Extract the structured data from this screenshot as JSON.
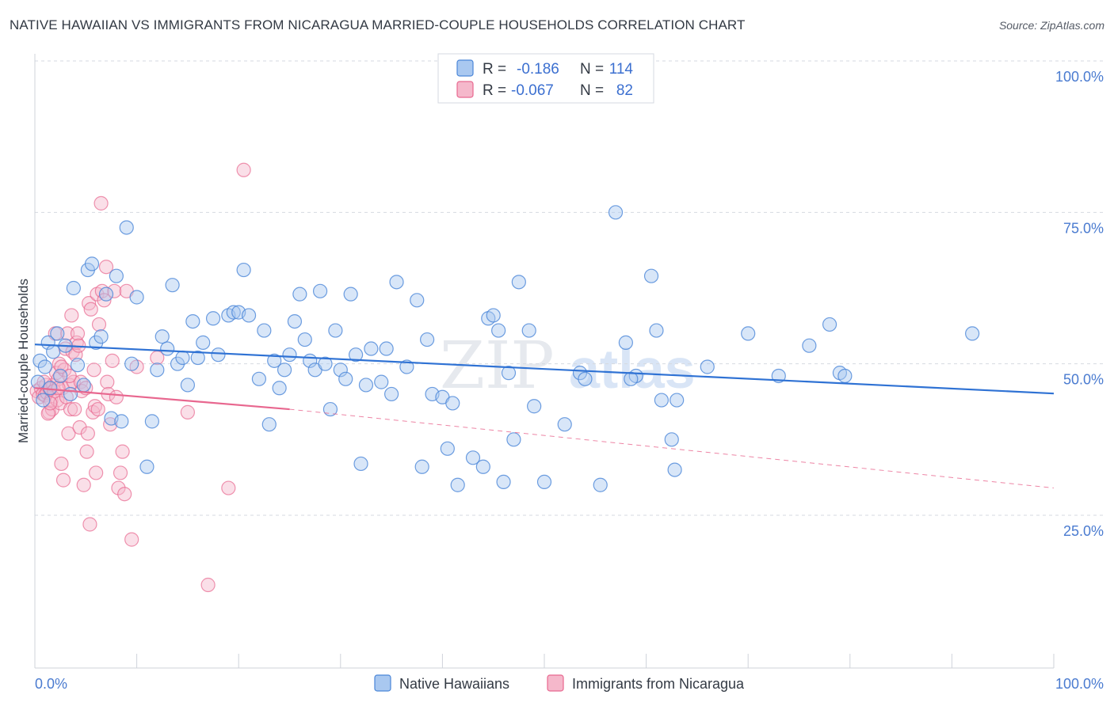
{
  "title": "NATIVE HAWAIIAN VS IMMIGRANTS FROM NICARAGUA MARRIED-COUPLE HOUSEHOLDS CORRELATION CHART",
  "source": "Source: ZipAtlas.com",
  "watermark": {
    "zip": "ZIP",
    "atlas": "atlas"
  },
  "colors": {
    "blue": "#4a86d8",
    "blue_fill": "#a9c8f0",
    "pink": "#e8678f",
    "pink_fill": "#f5b8cb",
    "grid": "#d5d9e0",
    "axis_text": "#4a7bd0"
  },
  "legend_top": {
    "rows": [
      {
        "r_label": "R =",
        "r_value": "-0.186",
        "n_label": "N =",
        "n_value": "114"
      },
      {
        "r_label": "R =",
        "r_value": "-0.067",
        "n_label": "N =",
        "n_value": "82"
      }
    ]
  },
  "legend_bottom": [
    "Native Hawaiians",
    "Immigrants from Nicaragua"
  ],
  "chart_data": {
    "type": "scatter",
    "title": "NATIVE HAWAIIAN VS IMMIGRANTS FROM NICARAGUA MARRIED-COUPLE HOUSEHOLDS CORRELATION CHART",
    "xlabel": "",
    "ylabel": "Married-couple Households",
    "xlim": [
      0,
      100
    ],
    "ylim": [
      0,
      105
    ],
    "x_tick_labels": [
      "0.0%",
      "100.0%"
    ],
    "y_ticks": [
      25,
      50,
      75,
      100
    ],
    "y_tick_labels": [
      "25.0%",
      "50.0%",
      "75.0%",
      "100.0%"
    ],
    "grid": "horizontal dashed",
    "legend_placement": "top-center",
    "series": [
      {
        "name": "Native Hawaiians",
        "r": -0.186,
        "n": 114,
        "trend": {
          "x": [
            0,
            100
          ],
          "y": [
            53.2,
            45.1
          ]
        },
        "points": [
          [
            0.3,
            47.0
          ],
          [
            0.5,
            50.5
          ],
          [
            0.8,
            44.0
          ],
          [
            1.0,
            49.5
          ],
          [
            1.3,
            53.5
          ],
          [
            1.5,
            46.0
          ],
          [
            1.8,
            52.0
          ],
          [
            2.2,
            55.0
          ],
          [
            2.5,
            48.0
          ],
          [
            3.0,
            53.0
          ],
          [
            3.5,
            45.0
          ],
          [
            3.8,
            62.5
          ],
          [
            4.2,
            49.8
          ],
          [
            4.8,
            46.5
          ],
          [
            5.2,
            65.5
          ],
          [
            5.6,
            66.5
          ],
          [
            6.0,
            53.5
          ],
          [
            6.5,
            54.5
          ],
          [
            7.0,
            61.5
          ],
          [
            7.5,
            41.0
          ],
          [
            8.0,
            64.5
          ],
          [
            8.5,
            40.5
          ],
          [
            9.0,
            72.5
          ],
          [
            9.5,
            50.0
          ],
          [
            10.0,
            61.0
          ],
          [
            11.0,
            33.0
          ],
          [
            11.5,
            40.5
          ],
          [
            12.0,
            49.0
          ],
          [
            12.5,
            54.5
          ],
          [
            13.0,
            52.5
          ],
          [
            13.5,
            63.0
          ],
          [
            14.0,
            50.0
          ],
          [
            14.5,
            51.0
          ],
          [
            15.0,
            46.5
          ],
          [
            15.5,
            57.0
          ],
          [
            16.0,
            51.0
          ],
          [
            16.5,
            53.5
          ],
          [
            17.5,
            57.5
          ],
          [
            18.0,
            51.5
          ],
          [
            19.0,
            58.0
          ],
          [
            19.5,
            58.5
          ],
          [
            20.0,
            58.5
          ],
          [
            20.5,
            65.5
          ],
          [
            21.0,
            58.0
          ],
          [
            22.0,
            47.5
          ],
          [
            22.5,
            55.5
          ],
          [
            23.0,
            40.0
          ],
          [
            23.5,
            50.5
          ],
          [
            24.0,
            46.0
          ],
          [
            24.5,
            49.0
          ],
          [
            25.0,
            51.5
          ],
          [
            25.5,
            57.0
          ],
          [
            26.0,
            61.5
          ],
          [
            26.5,
            54.0
          ],
          [
            27.0,
            50.5
          ],
          [
            27.5,
            49.0
          ],
          [
            28.0,
            62.0
          ],
          [
            28.5,
            50.0
          ],
          [
            29.0,
            42.5
          ],
          [
            29.5,
            55.5
          ],
          [
            30.0,
            49.0
          ],
          [
            30.5,
            47.5
          ],
          [
            31.0,
            61.5
          ],
          [
            31.5,
            51.5
          ],
          [
            32.0,
            33.5
          ],
          [
            32.5,
            46.5
          ],
          [
            33.0,
            52.5
          ],
          [
            34.0,
            47.0
          ],
          [
            34.5,
            52.5
          ],
          [
            35.0,
            45.0
          ],
          [
            35.5,
            63.5
          ],
          [
            36.5,
            49.5
          ],
          [
            37.5,
            60.5
          ],
          [
            38.0,
            33.0
          ],
          [
            38.5,
            54.0
          ],
          [
            39.0,
            45.0
          ],
          [
            40.0,
            44.5
          ],
          [
            40.5,
            36.0
          ],
          [
            41.0,
            43.5
          ],
          [
            41.5,
            30.0
          ],
          [
            43.0,
            34.5
          ],
          [
            44.0,
            33.0
          ],
          [
            44.5,
            57.5
          ],
          [
            45.0,
            58.0
          ],
          [
            45.5,
            55.5
          ],
          [
            46.0,
            30.5
          ],
          [
            46.5,
            48.5
          ],
          [
            47.0,
            37.5
          ],
          [
            47.5,
            63.5
          ],
          [
            48.5,
            55.5
          ],
          [
            49.0,
            43.0
          ],
          [
            50.0,
            30.5
          ],
          [
            52.0,
            40.0
          ],
          [
            53.5,
            48.5
          ],
          [
            54.0,
            47.5
          ],
          [
            55.5,
            30.0
          ],
          [
            57.0,
            75.0
          ],
          [
            58.0,
            53.5
          ],
          [
            59.0,
            48.0
          ],
          [
            60.5,
            64.5
          ],
          [
            61.0,
            55.5
          ],
          [
            61.5,
            44.0
          ],
          [
            62.5,
            37.5
          ],
          [
            62.8,
            32.5
          ],
          [
            63.0,
            44.0
          ],
          [
            66.0,
            49.5
          ],
          [
            70.0,
            55.0
          ],
          [
            73.0,
            48.0
          ],
          [
            76.0,
            53.0
          ],
          [
            78.0,
            56.5
          ],
          [
            79.0,
            48.5
          ],
          [
            92.0,
            55.0
          ],
          [
            79.5,
            48.0
          ],
          [
            58.5,
            47.5
          ]
        ]
      },
      {
        "name": "Immigrants from Nicaragua",
        "r": -0.067,
        "n": 82,
        "trend": {
          "x": [
            0,
            25
          ],
          "y": [
            46.0,
            42.5
          ]
        },
        "trend_extension": {
          "x": [
            25,
            100
          ],
          "y": [
            42.5,
            29.5
          ]
        },
        "points": [
          [
            0.2,
            45.5
          ],
          [
            0.4,
            44.5
          ],
          [
            0.6,
            46.0
          ],
          [
            0.8,
            45.0
          ],
          [
            1.0,
            44.8
          ],
          [
            1.1,
            46.5
          ],
          [
            1.2,
            45.2
          ],
          [
            1.4,
            42.0
          ],
          [
            1.5,
            45.8
          ],
          [
            1.6,
            44.0
          ],
          [
            1.7,
            42.5
          ],
          [
            1.8,
            46.5
          ],
          [
            1.9,
            45.5
          ],
          [
            2.0,
            55.0
          ],
          [
            2.1,
            48.5
          ],
          [
            2.2,
            44.0
          ],
          [
            2.3,
            47.5
          ],
          [
            2.4,
            50.0
          ],
          [
            2.5,
            43.5
          ],
          [
            2.6,
            33.5
          ],
          [
            2.7,
            46.0
          ],
          [
            2.8,
            30.8
          ],
          [
            2.9,
            49.0
          ],
          [
            3.0,
            52.5
          ],
          [
            3.1,
            44.5
          ],
          [
            3.2,
            55.0
          ],
          [
            3.3,
            38.5
          ],
          [
            3.4,
            46.5
          ],
          [
            3.5,
            42.5
          ],
          [
            3.6,
            58.0
          ],
          [
            3.7,
            52.0
          ],
          [
            3.8,
            47.0
          ],
          [
            3.9,
            42.5
          ],
          [
            4.0,
            51.5
          ],
          [
            4.1,
            53.5
          ],
          [
            4.2,
            55.0
          ],
          [
            4.4,
            39.5
          ],
          [
            4.5,
            47.0
          ],
          [
            4.6,
            45.5
          ],
          [
            4.8,
            30.0
          ],
          [
            5.0,
            46.0
          ],
          [
            5.1,
            35.5
          ],
          [
            5.2,
            38.5
          ],
          [
            5.3,
            60.0
          ],
          [
            5.4,
            23.5
          ],
          [
            5.5,
            59.0
          ],
          [
            5.7,
            42.0
          ],
          [
            5.8,
            49.0
          ],
          [
            5.9,
            43.0
          ],
          [
            6.0,
            32.0
          ],
          [
            6.1,
            61.5
          ],
          [
            6.3,
            56.5
          ],
          [
            6.5,
            76.5
          ],
          [
            6.6,
            62.0
          ],
          [
            6.8,
            60.5
          ],
          [
            7.0,
            66.0
          ],
          [
            7.1,
            47.0
          ],
          [
            7.2,
            45.0
          ],
          [
            7.4,
            40.0
          ],
          [
            7.6,
            50.5
          ],
          [
            7.8,
            62.0
          ],
          [
            8.0,
            44.5
          ],
          [
            8.2,
            29.5
          ],
          [
            8.4,
            32.0
          ],
          [
            8.6,
            35.5
          ],
          [
            8.8,
            28.5
          ],
          [
            9.0,
            62.0
          ],
          [
            9.5,
            21.0
          ],
          [
            10.0,
            49.5
          ],
          [
            12.0,
            51.0
          ],
          [
            15.0,
            42.0
          ],
          [
            17.0,
            13.5
          ],
          [
            19.0,
            29.5
          ],
          [
            20.5,
            82.0
          ],
          [
            1.3,
            41.8
          ],
          [
            2.6,
            49.5
          ],
          [
            3.4,
            48.0
          ],
          [
            4.3,
            53.0
          ],
          [
            6.2,
            42.5
          ],
          [
            0.9,
            47.0
          ],
          [
            1.5,
            43.5
          ],
          [
            2.3,
            46.0
          ]
        ]
      }
    ]
  }
}
